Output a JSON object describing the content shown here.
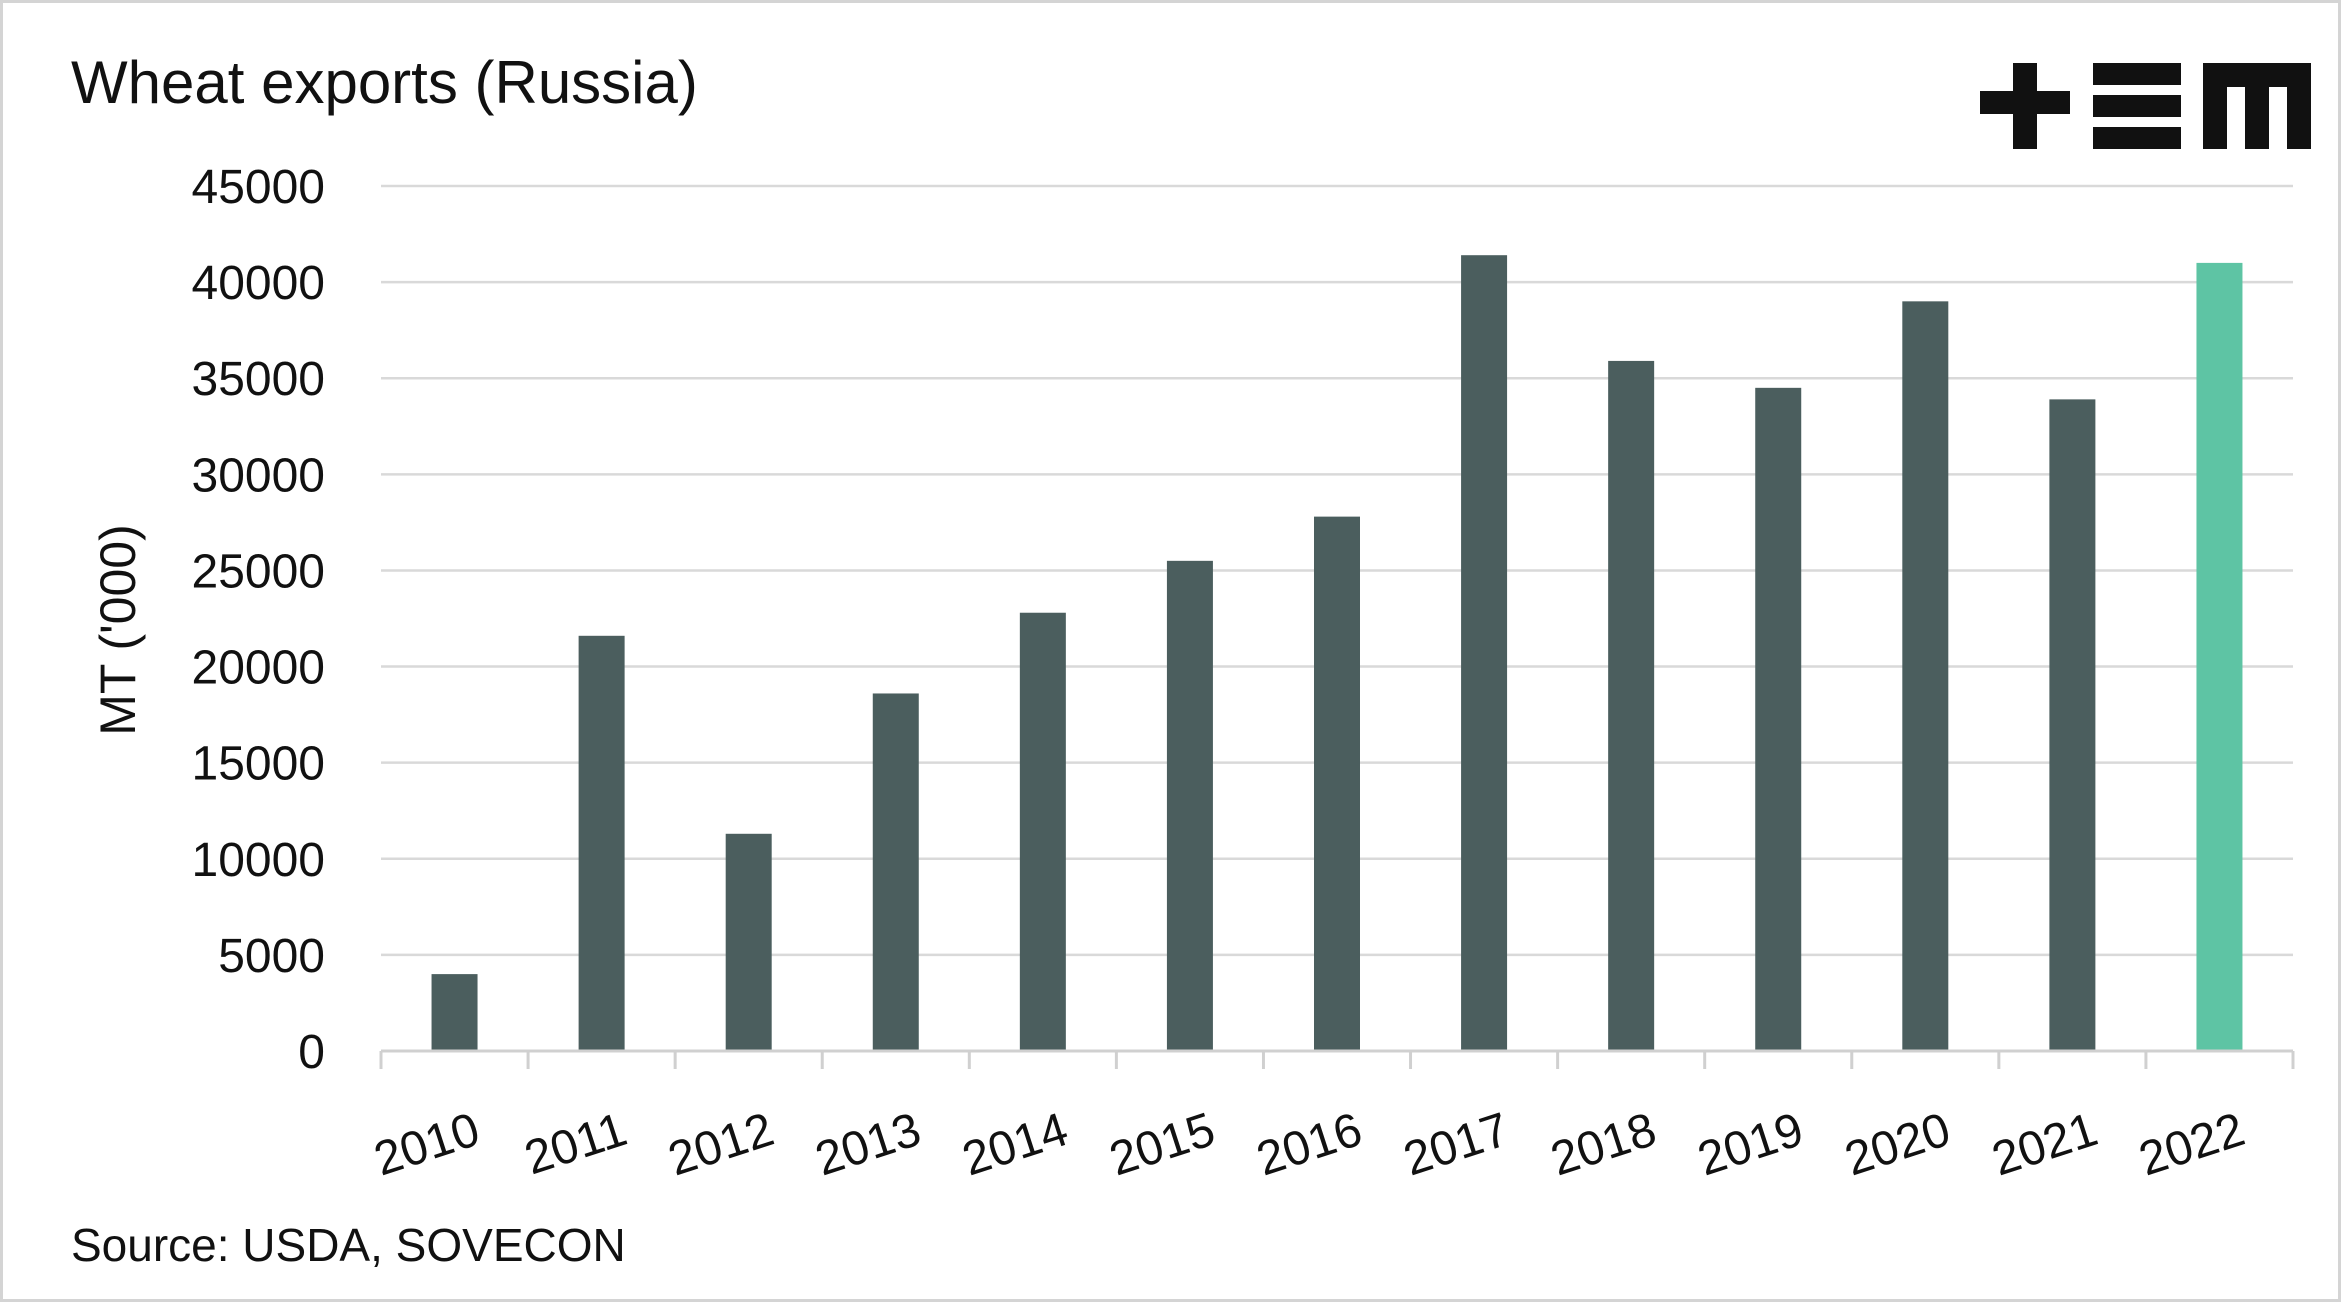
{
  "logo": {
    "name": "tem-logo"
  },
  "source": "Source: USDA, SOVECON",
  "colors": {
    "bar": "#4b5e5e",
    "highlight_bar": "#5ec4a4",
    "grid": "#d9d9d9",
    "text": "#111111"
  },
  "chart_data": {
    "type": "bar",
    "title": "Wheat exports (Russia)",
    "xlabel": "",
    "ylabel": "MT ('000)",
    "categories": [
      "2010",
      "2011",
      "2012",
      "2013",
      "2014",
      "2015",
      "2016",
      "2017",
      "2018",
      "2019",
      "2020",
      "2021",
      "2022"
    ],
    "values": [
      4000,
      21600,
      11300,
      18600,
      22800,
      25500,
      27800,
      41400,
      35900,
      34500,
      39000,
      33900,
      41000
    ],
    "highlight_index": 12,
    "ylim": [
      0,
      45000
    ],
    "yticks": [
      0,
      5000,
      10000,
      15000,
      20000,
      25000,
      30000,
      35000,
      40000,
      45000
    ],
    "grid": true,
    "legend": "none"
  }
}
